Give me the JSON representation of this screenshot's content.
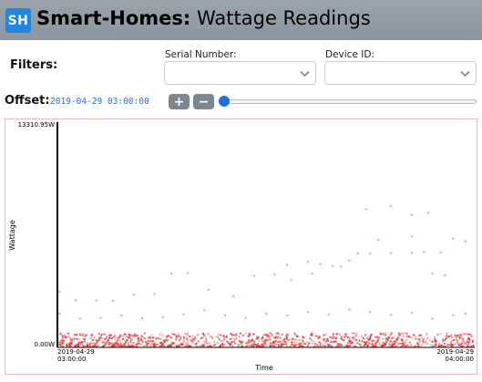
{
  "header": {
    "logo_text": "SH",
    "title_bold": "Smart-Homes:",
    "title_rest": " Wattage Readings"
  },
  "filters": {
    "label": "Filters:",
    "serial_number_label": "Serial Number:",
    "device_id_label": "Device ID:",
    "serial_number_value": "",
    "device_id_value": ""
  },
  "offset": {
    "label": "Offset:",
    "value": "2019-04-29 03:00:00",
    "plus": "+",
    "minus": "−"
  },
  "chart_data": {
    "type": "scatter",
    "ylabel": "Wattage",
    "xlabel": "Time",
    "ylim": [
      0,
      13310.95
    ],
    "y_tick_labels": [
      "13310.95W",
      "0.00W"
    ],
    "x_tick_labels": [
      {
        "date": "2019-04-29",
        "time": "03:00:00"
      },
      {
        "date": "2019-04-29",
        "time": "04:00:00"
      }
    ],
    "xlim": [
      "2019-04-29 03:00:00",
      "2019-04-29 04:00:00"
    ],
    "color": "#e03030",
    "series": [
      {
        "values": [
          [
            3.0,
            3250
          ],
          [
            3.04,
            2760
          ],
          [
            3.09,
            2740
          ],
          [
            3.13,
            2720
          ],
          [
            3.18,
            3080
          ],
          [
            3.23,
            3120
          ],
          [
            3.27,
            4330
          ],
          [
            3.31,
            4380
          ],
          [
            3.36,
            3380
          ],
          [
            3.42,
            3000
          ],
          [
            3.47,
            4200
          ],
          [
            3.52,
            4280
          ],
          [
            3.56,
            3950
          ],
          [
            3.61,
            4330
          ],
          [
            3.66,
            4800
          ],
          [
            3.7,
            5130
          ],
          [
            3.74,
            8190
          ],
          [
            3.8,
            8380
          ],
          [
            3.85,
            7840
          ],
          [
            3.89,
            7960
          ],
          [
            3.95,
            6420
          ],
          [
            3.98,
            6270
          ],
          [
            3.0,
            1950
          ],
          [
            3.05,
            1650
          ],
          [
            3.1,
            1700
          ],
          [
            3.15,
            1850
          ],
          [
            3.2,
            1680
          ],
          [
            3.25,
            1750
          ],
          [
            3.3,
            1900
          ],
          [
            3.35,
            2150
          ],
          [
            3.4,
            1850
          ],
          [
            3.45,
            1700
          ],
          [
            3.5,
            1950
          ],
          [
            3.55,
            1850
          ],
          [
            3.6,
            2050
          ],
          [
            3.65,
            1900
          ],
          [
            3.7,
            2200
          ],
          [
            3.75,
            2050
          ],
          [
            3.8,
            1880
          ],
          [
            3.85,
            2000
          ],
          [
            3.9,
            1650
          ],
          [
            3.95,
            1850
          ],
          [
            3.98,
            1950
          ],
          [
            3.72,
            5550
          ],
          [
            3.75,
            5530
          ],
          [
            3.8,
            5560
          ],
          [
            3.85,
            5580
          ],
          [
            3.88,
            5620
          ],
          [
            3.92,
            5600
          ],
          [
            3.55,
            4850
          ],
          [
            3.6,
            5030
          ],
          [
            3.63,
            4900
          ],
          [
            3.68,
            4750
          ],
          [
            3.77,
            6350
          ],
          [
            3.85,
            6560
          ],
          [
            3.9,
            4350
          ],
          [
            3.93,
            4250
          ]
        ]
      }
    ],
    "dense_band": {
      "y_range": [
        0,
        800
      ],
      "note": ""
    }
  }
}
